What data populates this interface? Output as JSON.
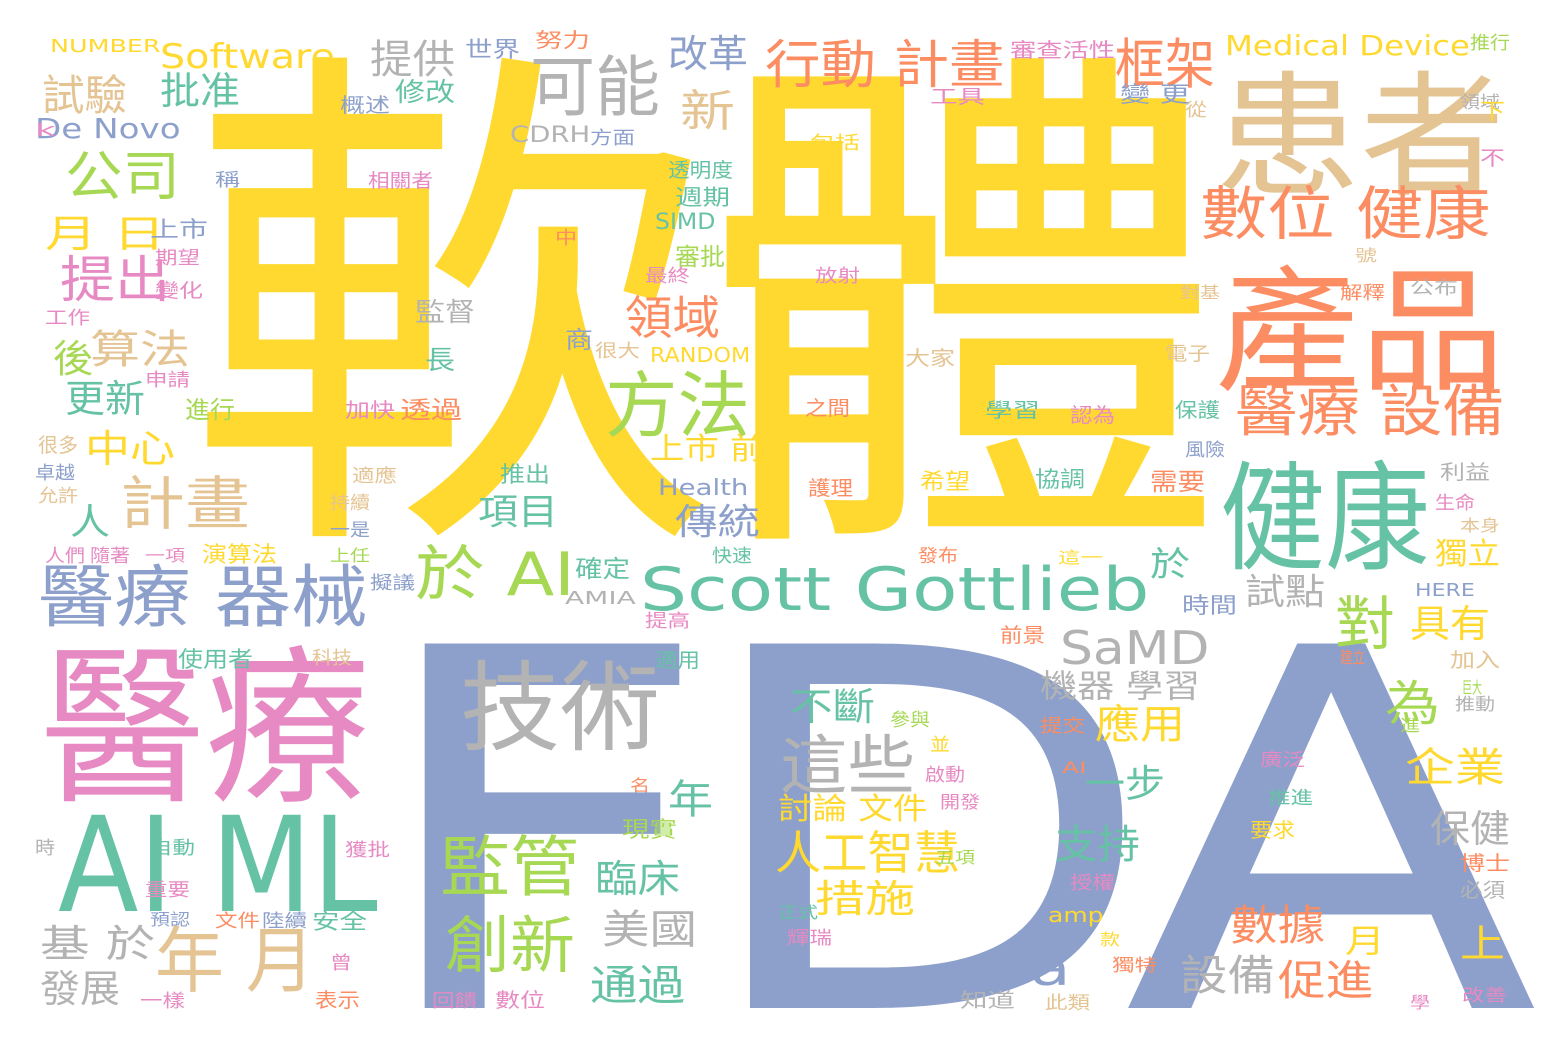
{
  "palette": {
    "yellow": "#ffd92f",
    "periwinkle": "#8da0cb",
    "pink": "#e78ac3",
    "teal": "#66c2a5",
    "orange": "#fc8d62",
    "tan": "#e5c494",
    "gray": "#b3b3b3",
    "green": "#a6d854"
  },
  "words": [
    {
      "text": "軟體",
      "color": "yellow"
    },
    {
      "text": "FDA",
      "color": "periwinkle"
    },
    {
      "text": "醫療",
      "color": "pink"
    },
    {
      "text": "患者",
      "color": "tan"
    },
    {
      "text": "產品",
      "color": "orange"
    },
    {
      "text": "健康",
      "color": "teal"
    },
    {
      "text": "AI ML",
      "color": "teal"
    },
    {
      "text": "技術",
      "color": "gray"
    },
    {
      "text": "Scott Gottlieb",
      "color": "teal"
    },
    {
      "text": "醫療 器械",
      "color": "periwinkle"
    },
    {
      "text": "數位 健康",
      "color": "orange"
    },
    {
      "text": "醫療 設備",
      "color": "orange"
    },
    {
      "text": "方法",
      "color": "green"
    },
    {
      "text": "監管",
      "color": "green"
    },
    {
      "text": "可能",
      "color": "gray"
    },
    {
      "text": "年 月",
      "color": "tan"
    },
    {
      "text": "於 AI",
      "color": "green"
    },
    {
      "text": "公司",
      "color": "green"
    },
    {
      "text": "計畫",
      "color": "tan"
    },
    {
      "text": "行動 計畫",
      "color": "orange"
    },
    {
      "text": "這些",
      "color": "gray"
    },
    {
      "text": "創新",
      "color": "green"
    },
    {
      "text": "人工智慧",
      "color": "yellow"
    },
    {
      "text": "對",
      "color": "green"
    },
    {
      "text": "框架",
      "color": "orange"
    },
    {
      "text": "Software",
      "color": "yellow"
    },
    {
      "text": "SaMD",
      "color": "gray"
    },
    {
      "text": "為",
      "color": "green"
    },
    {
      "text": "提出",
      "color": "pink"
    },
    {
      "text": "提供",
      "color": "gray"
    },
    {
      "text": "改革",
      "color": "periwinkle"
    },
    {
      "text": "試驗",
      "color": "tan"
    },
    {
      "text": "批准",
      "color": "teal"
    },
    {
      "text": "月 日",
      "color": "yellow"
    },
    {
      "text": "算法",
      "color": "tan"
    },
    {
      "text": "更新",
      "color": "teal"
    },
    {
      "text": "中心",
      "color": "yellow"
    },
    {
      "text": "領域",
      "color": "orange"
    },
    {
      "text": "新",
      "color": "tan"
    },
    {
      "text": "項目",
      "color": "teal"
    },
    {
      "text": "傳統",
      "color": "periwinkle"
    },
    {
      "text": "基 於",
      "color": "gray"
    },
    {
      "text": "發展",
      "color": "gray"
    },
    {
      "text": "美國",
      "color": "gray"
    },
    {
      "text": "通過",
      "color": "teal"
    },
    {
      "text": "臨床",
      "color": "teal"
    },
    {
      "text": "措施",
      "color": "yellow"
    },
    {
      "text": "數據",
      "color": "orange"
    },
    {
      "text": "設備",
      "color": "gray"
    },
    {
      "text": "促進",
      "color": "orange"
    },
    {
      "text": "支持",
      "color": "teal"
    },
    {
      "text": "企業",
      "color": "yellow"
    },
    {
      "text": "保健",
      "color": "gray"
    },
    {
      "text": "應用",
      "color": "yellow"
    },
    {
      "text": "具有",
      "color": "yellow"
    },
    {
      "text": "機器 學習",
      "color": "gray"
    },
    {
      "text": "不斷",
      "color": "teal"
    },
    {
      "text": "一步",
      "color": "teal"
    },
    {
      "text": "於",
      "color": "teal"
    },
    {
      "text": "試點",
      "color": "gray"
    },
    {
      "text": "獨立",
      "color": "yellow"
    },
    {
      "text": "上",
      "color": "yellow"
    },
    {
      "text": "月",
      "color": "yellow"
    },
    {
      "text": "a",
      "color": "periwinkle"
    },
    {
      "text": "年",
      "color": "teal"
    },
    {
      "text": "人",
      "color": "teal"
    },
    {
      "text": "後",
      "color": "green"
    },
    {
      "text": "討論 文件",
      "color": "yellow"
    },
    {
      "text": "上市 前",
      "color": "yellow"
    },
    {
      "text": "Medical Device",
      "color": "yellow"
    },
    {
      "text": "De Novo",
      "color": "periwinkle"
    },
    {
      "text": "NUMBER",
      "color": "yellow"
    },
    {
      "text": "世界",
      "color": "periwinkle"
    },
    {
      "text": "努力",
      "color": "orange"
    },
    {
      "text": "審查活性",
      "color": "pink"
    },
    {
      "text": "推行",
      "color": "green"
    },
    {
      "text": "領域",
      "color": "gray"
    },
    {
      "text": "修改",
      "color": "teal"
    },
    {
      "text": "概述",
      "color": "periwinkle"
    },
    {
      "text": "工具",
      "color": "pink"
    },
    {
      "text": "變 更",
      "color": "periwinkle"
    },
    {
      "text": "從",
      "color": "tan"
    },
    {
      "text": "下",
      "color": "yellow"
    },
    {
      "text": "CDRH",
      "color": "gray"
    },
    {
      "text": "方面",
      "color": "periwinkle"
    },
    {
      "text": "包括",
      "color": "yellow"
    },
    {
      "text": "不",
      "color": "pink"
    },
    {
      "text": "k",
      "color": "pink"
    },
    {
      "text": "稱",
      "color": "periwinkle"
    },
    {
      "text": "透明度",
      "color": "teal"
    },
    {
      "text": "相關者",
      "color": "pink"
    },
    {
      "text": "週期",
      "color": "teal"
    },
    {
      "text": "上市",
      "color": "periwinkle"
    },
    {
      "text": "SIMD",
      "color": "teal"
    },
    {
      "text": "中",
      "color": "orange"
    },
    {
      "text": "審批",
      "color": "green"
    },
    {
      "text": "期望",
      "color": "pink"
    },
    {
      "text": "最終",
      "color": "pink"
    },
    {
      "text": "號",
      "color": "tan"
    },
    {
      "text": "變化",
      "color": "pink"
    },
    {
      "text": "放射",
      "color": "pink"
    },
    {
      "text": "解釋",
      "color": "orange"
    },
    {
      "text": "公布",
      "color": "gray"
    },
    {
      "text": "對基",
      "color": "tan"
    },
    {
      "text": "工作",
      "color": "pink"
    },
    {
      "text": "監督",
      "color": "gray"
    },
    {
      "text": "商",
      "color": "periwinkle"
    },
    {
      "text": "很大",
      "color": "tan"
    },
    {
      "text": "RANDOM",
      "color": "yellow"
    },
    {
      "text": "長",
      "color": "teal"
    },
    {
      "text": "大家",
      "color": "tan"
    },
    {
      "text": "電子",
      "color": "tan"
    },
    {
      "text": "申請",
      "color": "pink"
    },
    {
      "text": "進行",
      "color": "green"
    },
    {
      "text": "加快",
      "color": "pink"
    },
    {
      "text": "透過",
      "color": "orange"
    },
    {
      "text": "之間",
      "color": "orange"
    },
    {
      "text": "學習",
      "color": "teal"
    },
    {
      "text": "認為",
      "color": "pink"
    },
    {
      "text": "保護",
      "color": "teal"
    },
    {
      "text": "很多",
      "color": "tan"
    },
    {
      "text": "風險",
      "color": "periwinkle"
    },
    {
      "text": "卓越",
      "color": "periwinkle"
    },
    {
      "text": "適應",
      "color": "tan"
    },
    {
      "text": "推出",
      "color": "teal"
    },
    {
      "text": "護理",
      "color": "orange"
    },
    {
      "text": "希望",
      "color": "yellow"
    },
    {
      "text": "協調",
      "color": "teal"
    },
    {
      "text": "需要",
      "color": "orange"
    },
    {
      "text": "利益",
      "color": "gray"
    },
    {
      "text": "允許",
      "color": "tan"
    },
    {
      "text": "持續",
      "color": "tan"
    },
    {
      "text": "Health",
      "color": "periwinkle"
    },
    {
      "text": "生命",
      "color": "pink"
    },
    {
      "text": "本身",
      "color": "tan"
    },
    {
      "text": "人們",
      "color": "pink"
    },
    {
      "text": "隨著",
      "color": "pink"
    },
    {
      "text": "一是",
      "color": "periwinkle"
    },
    {
      "text": "一項",
      "color": "pink"
    },
    {
      "text": "演算法",
      "color": "yellow"
    },
    {
      "text": "上任",
      "color": "green"
    },
    {
      "text": "快速",
      "color": "teal"
    },
    {
      "text": "發布",
      "color": "orange"
    },
    {
      "text": "確定",
      "color": "teal"
    },
    {
      "text": "這一",
      "color": "yellow"
    },
    {
      "text": "擬議",
      "color": "periwinkle"
    },
    {
      "text": "AMIA",
      "color": "gray"
    },
    {
      "text": "時間",
      "color": "periwinkle"
    },
    {
      "text": "HERE",
      "color": "periwinkle"
    },
    {
      "text": "提高",
      "color": "pink"
    },
    {
      "text": "前景",
      "color": "orange"
    },
    {
      "text": "建立",
      "color": "orange"
    },
    {
      "text": "加入",
      "color": "tan"
    },
    {
      "text": "使用者",
      "color": "teal"
    },
    {
      "text": "科技",
      "color": "tan"
    },
    {
      "text": "適用",
      "color": "teal"
    },
    {
      "text": "巨大",
      "color": "green"
    },
    {
      "text": "推動",
      "color": "gray"
    },
    {
      "text": "提交",
      "color": "orange"
    },
    {
      "text": "參與",
      "color": "green"
    },
    {
      "text": "進",
      "color": "green"
    },
    {
      "text": "並",
      "color": "yellow"
    },
    {
      "text": "廣泛",
      "color": "pink"
    },
    {
      "text": "啟動",
      "color": "pink"
    },
    {
      "text": "AI",
      "color": "orange"
    },
    {
      "text": "名",
      "color": "orange"
    },
    {
      "text": "開發",
      "color": "pink"
    },
    {
      "text": "php",
      "color": "periwinkle"
    },
    {
      "text": "推進",
      "color": "teal"
    },
    {
      "text": "現實",
      "color": "green"
    },
    {
      "text": "要求",
      "color": "yellow"
    },
    {
      "text": "時",
      "color": "gray"
    },
    {
      "text": "自動",
      "color": "teal"
    },
    {
      "text": "獲批",
      "color": "pink"
    },
    {
      "text": "五項",
      "color": "green"
    },
    {
      "text": "博士",
      "color": "orange"
    },
    {
      "text": "授權",
      "color": "pink"
    },
    {
      "text": "必須",
      "color": "gray"
    },
    {
      "text": "重要",
      "color": "pink"
    },
    {
      "text": "預認",
      "color": "periwinkle"
    },
    {
      "text": "文件",
      "color": "orange"
    },
    {
      "text": "陸續",
      "color": "periwinkle"
    },
    {
      "text": "安全",
      "color": "teal"
    },
    {
      "text": "正式",
      "color": "teal"
    },
    {
      "text": "amp",
      "color": "yellow"
    },
    {
      "text": "輝瑞",
      "color": "pink"
    },
    {
      "text": "發表",
      "color": "periwinkle"
    },
    {
      "text": "款",
      "color": "yellow"
    },
    {
      "text": "曾",
      "color": "pink"
    },
    {
      "text": "獨特",
      "color": "orange"
    },
    {
      "text": "一樣",
      "color": "pink"
    },
    {
      "text": "表示",
      "color": "orange"
    },
    {
      "text": "回饋",
      "color": "pink"
    },
    {
      "text": "數位",
      "color": "pink"
    },
    {
      "text": "知道",
      "color": "gray"
    },
    {
      "text": "此類",
      "color": "tan"
    },
    {
      "text": "學",
      "color": "pink"
    },
    {
      "text": "改善",
      "color": "pink"
    }
  ]
}
